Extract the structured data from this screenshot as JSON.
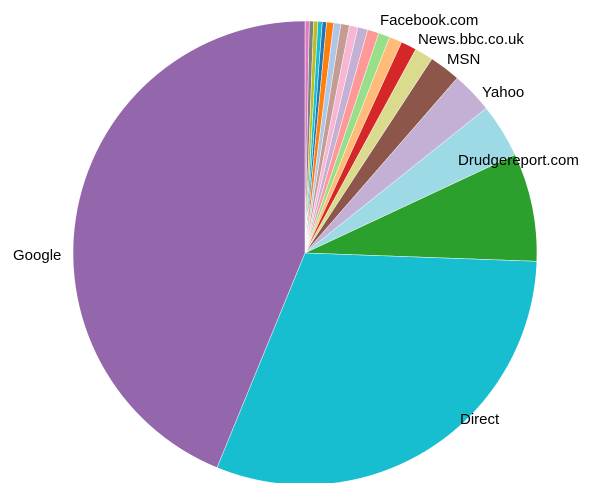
{
  "chart_data": {
    "type": "pie",
    "title": "",
    "start_angle_deg": 90,
    "direction": "clockwise",
    "slices": [
      {
        "label": "",
        "value": 0.3,
        "color": "#e377c2"
      },
      {
        "label": "",
        "value": 0.3,
        "color": "#7f7f7f"
      },
      {
        "label": "",
        "value": 0.3,
        "color": "#bcbd22"
      },
      {
        "label": "",
        "value": 0.3,
        "color": "#17becf"
      },
      {
        "label": "",
        "value": 0.3,
        "color": "#1f77b4"
      },
      {
        "label": "",
        "value": 0.5,
        "color": "#ff7f0e"
      },
      {
        "label": "",
        "value": 0.5,
        "color": "#aec7e8"
      },
      {
        "label": "",
        "value": 0.6,
        "color": "#c49c94"
      },
      {
        "label": "",
        "value": 0.6,
        "color": "#f7b6d2"
      },
      {
        "label": "",
        "value": 0.7,
        "color": "#c5b0d5"
      },
      {
        "label": "",
        "value": 0.8,
        "color": "#ff9896"
      },
      {
        "label": "",
        "value": 0.8,
        "color": "#98df8a"
      },
      {
        "label": "",
        "value": 0.9,
        "color": "#ffbb78"
      },
      {
        "label": "Facebook.com",
        "value": 1.1,
        "color": "#d62728"
      },
      {
        "label": "News.bbc.co.uk",
        "value": 1.3,
        "color": "#dbdb8d"
      },
      {
        "label": "",
        "value": 2.2,
        "color": "#8c564b"
      },
      {
        "label": "MSN",
        "value": 2.9,
        "color": "#c5b0d5"
      },
      {
        "label": "Yahoo",
        "value": 3.8,
        "color": "#9edae5"
      },
      {
        "label": "Drudgereport.com",
        "value": 7.6,
        "color": "#2ca02c"
      },
      {
        "label": "Direct",
        "value": 30.9,
        "color": "#17becf"
      },
      {
        "label": "Google",
        "value": 44.2,
        "color": "#9467ad"
      }
    ]
  }
}
